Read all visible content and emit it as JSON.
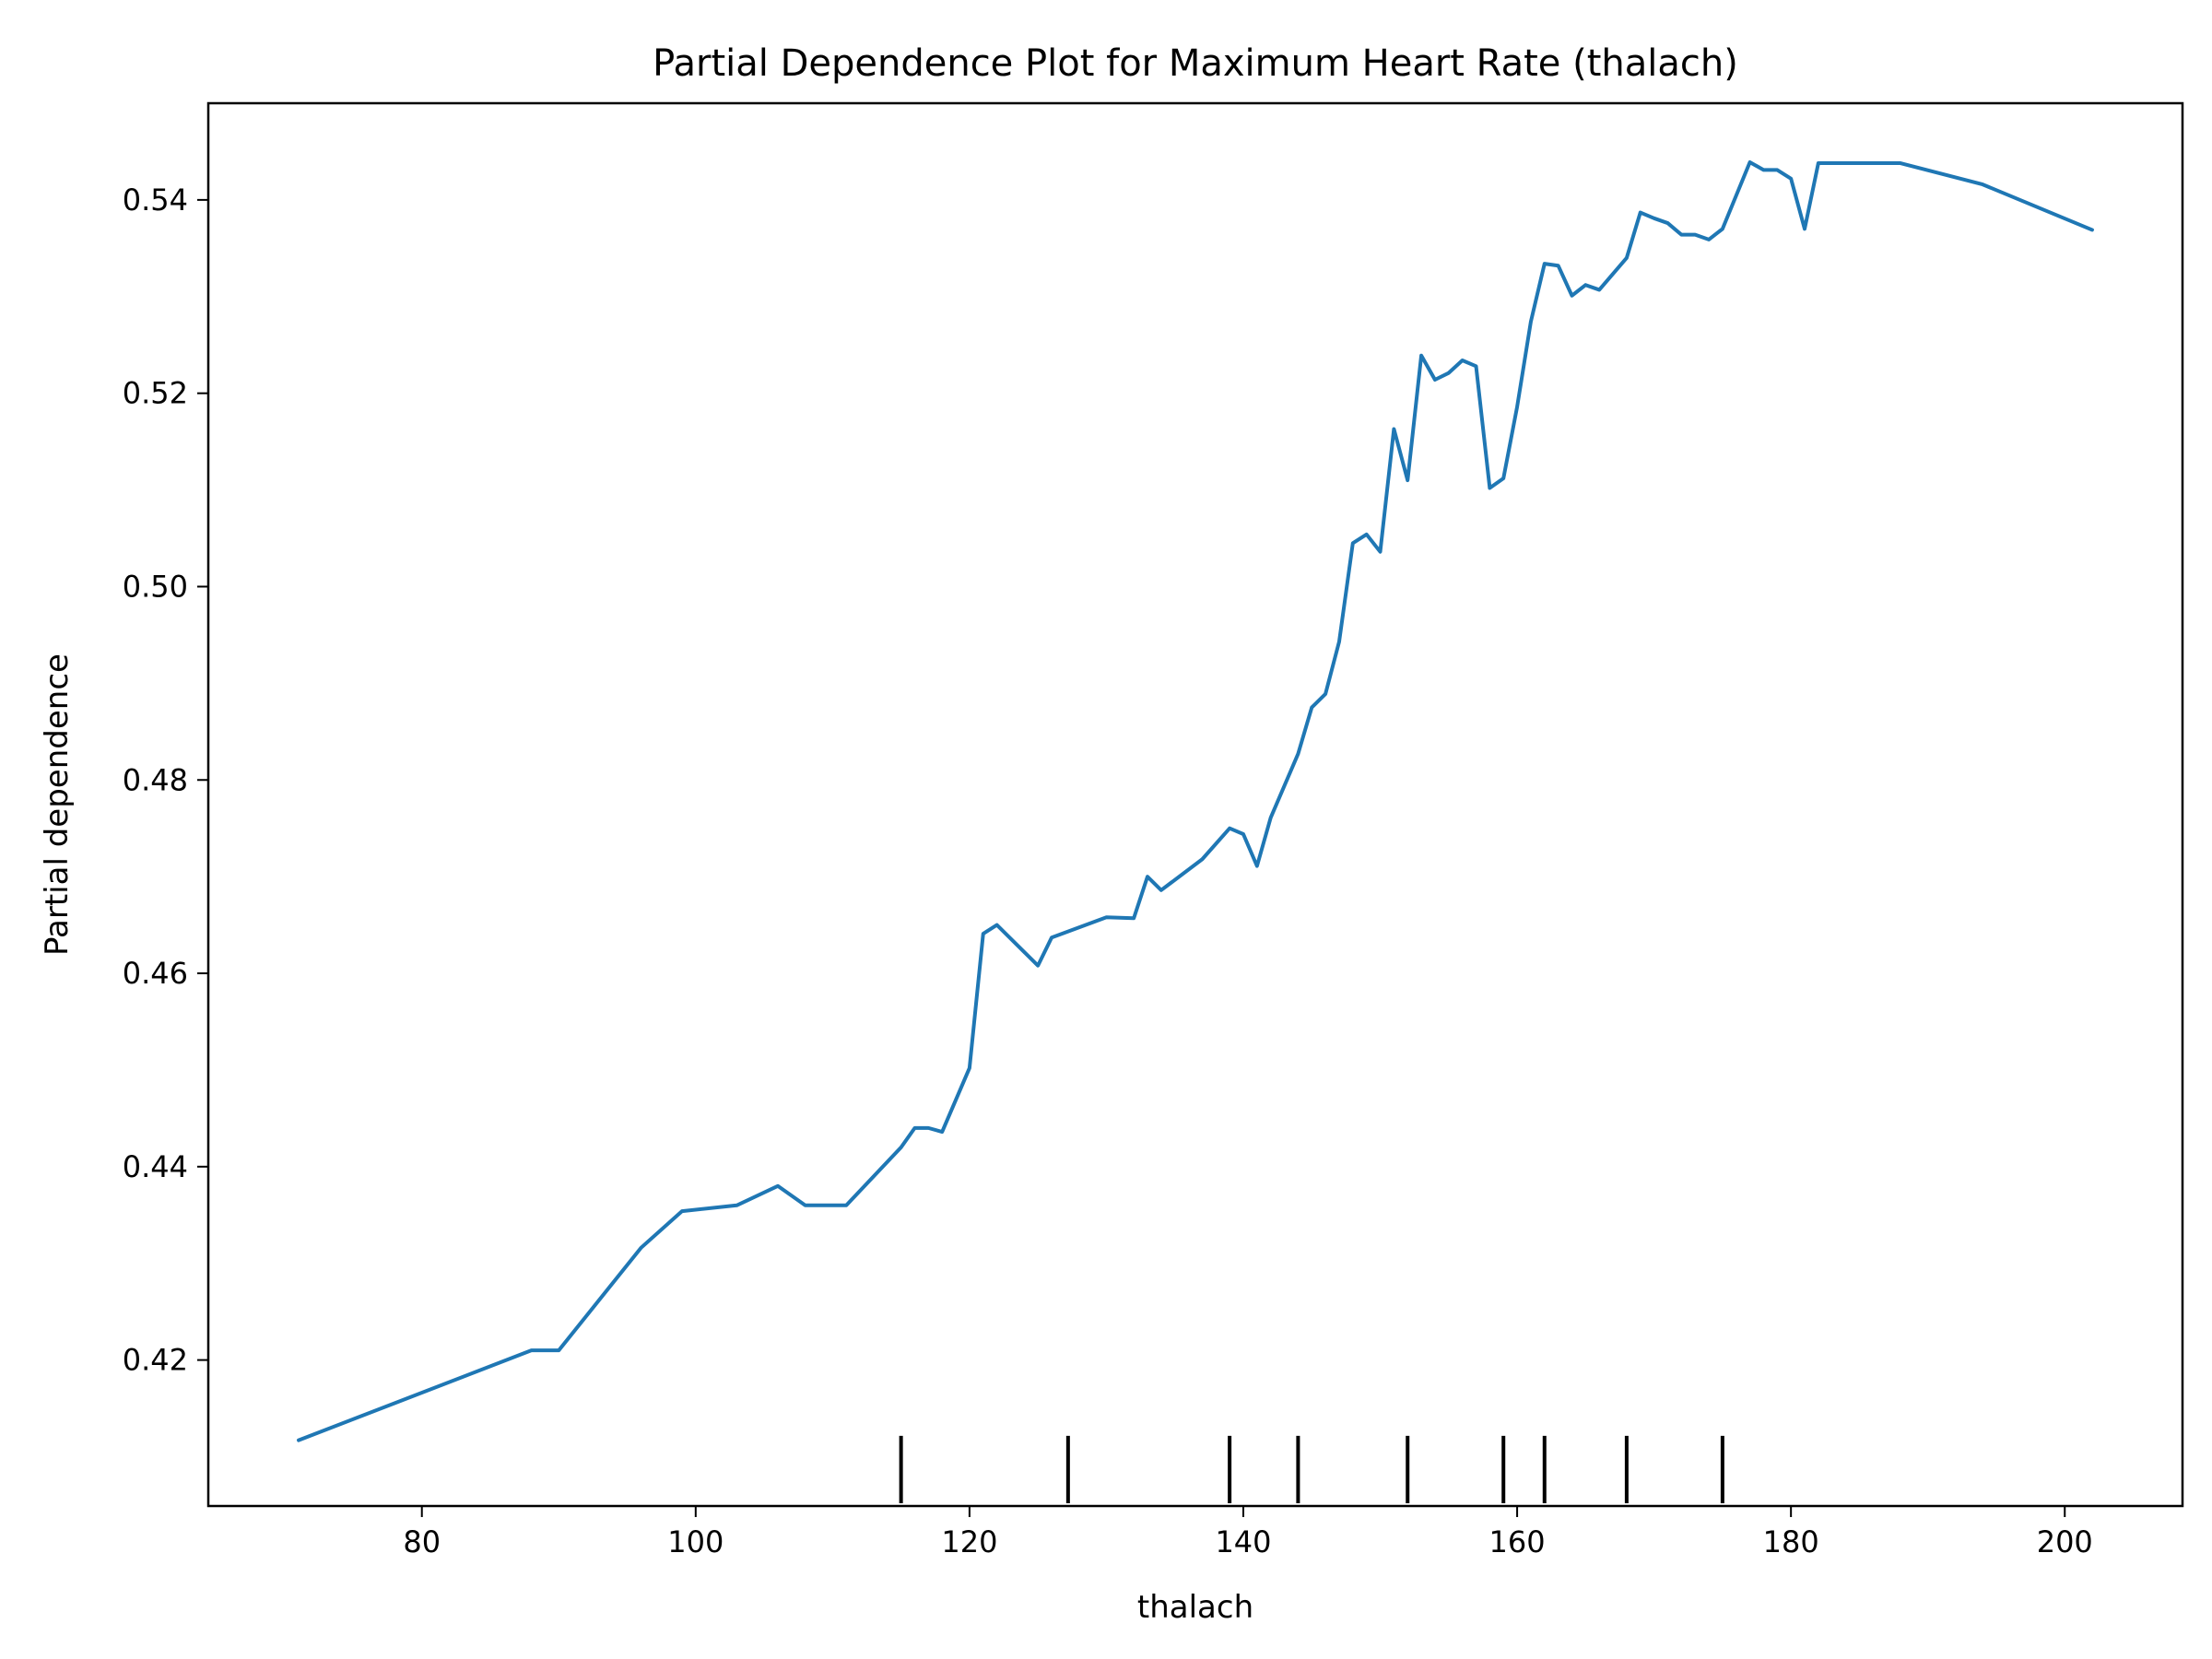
{
  "chart_data": {
    "type": "line",
    "title": "Partial Dependence Plot for Maximum Heart Rate (thalach)",
    "xlabel": "thalach",
    "ylabel": "Partial dependence",
    "xlim": [
      64.4,
      208.6
    ],
    "ylim": [
      0.4049,
      0.55
    ],
    "x_ticks": [
      80,
      100,
      120,
      140,
      160,
      180,
      200
    ],
    "x_tick_labels": [
      "80",
      "100",
      "120",
      "140",
      "160",
      "180",
      "200"
    ],
    "y_ticks": [
      0.42,
      0.44,
      0.46,
      0.48,
      0.5,
      0.52,
      0.54
    ],
    "y_tick_labels": [
      "0.42",
      "0.44",
      "0.46",
      "0.48",
      "0.50",
      "0.52",
      "0.54"
    ],
    "grid": false,
    "series": [
      {
        "color": "#1f77b4",
        "x": [
          71,
          88,
          90,
          96,
          99,
          103,
          106,
          108,
          111,
          115,
          116,
          117,
          118,
          120,
          121,
          122,
          125,
          126,
          130,
          132,
          133,
          134,
          137,
          139,
          140,
          141,
          142,
          144,
          145,
          146,
          147,
          148,
          149,
          150,
          151,
          152,
          153,
          154,
          155,
          156,
          157,
          158,
          159,
          160,
          161,
          162,
          163,
          164,
          165,
          166,
          168,
          169,
          170,
          171,
          172,
          173,
          174,
          175,
          177,
          178,
          179,
          180,
          181,
          182,
          188,
          194,
          202
        ],
        "y": [
          0.4117,
          0.421,
          0.421,
          0.4316,
          0.4354,
          0.436,
          0.438,
          0.436,
          0.436,
          0.442,
          0.444,
          0.444,
          0.4436,
          0.4502,
          0.4641,
          0.465,
          0.4608,
          0.4637,
          0.4658,
          0.4657,
          0.47,
          0.4686,
          0.4718,
          0.475,
          0.4744,
          0.4711,
          0.4761,
          0.4827,
          0.4875,
          0.4889,
          0.4943,
          0.5045,
          0.5054,
          0.5036,
          0.5163,
          0.511,
          0.5239,
          0.5214,
          0.5221,
          0.5234,
          0.5228,
          0.5102,
          0.5112,
          0.5186,
          0.5274,
          0.5334,
          0.5332,
          0.5301,
          0.5312,
          0.5307,
          0.534,
          0.5387,
          0.5381,
          0.5376,
          0.5364,
          0.5364,
          0.5359,
          0.537,
          0.5439,
          0.5431,
          0.5431,
          0.5422,
          0.537,
          0.5438,
          0.5438,
          0.5416,
          0.5369
        ]
      }
    ],
    "rug_x": [
      115,
      127.2,
      139,
      144,
      152,
      159,
      162,
      168,
      175
    ]
  }
}
